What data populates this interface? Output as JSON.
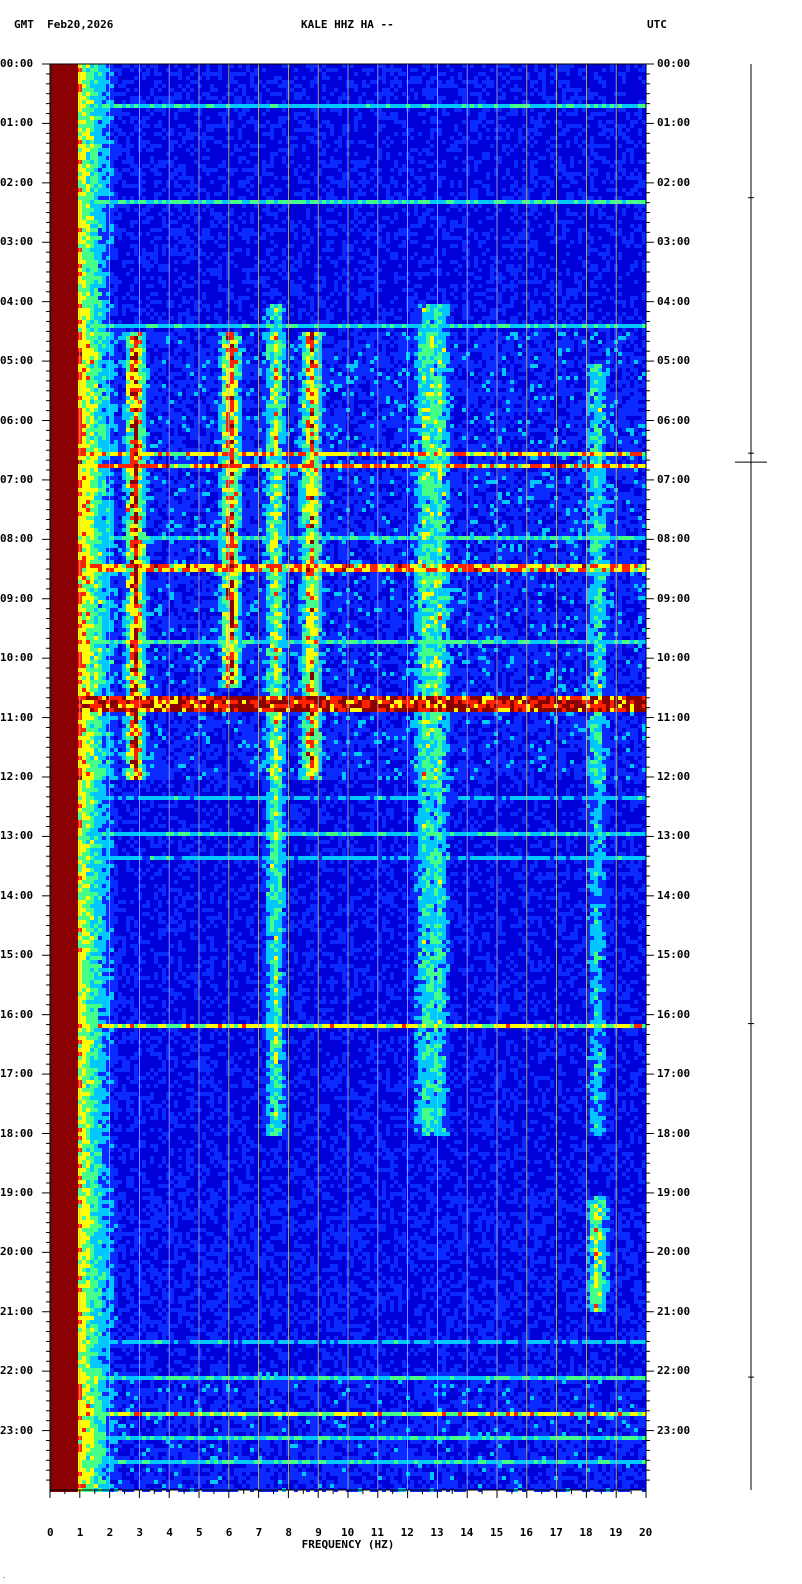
{
  "header": {
    "left": "GMT  Feb20,2026",
    "center": "KALE HHZ HA --",
    "right": "UTC"
  },
  "corner_mark": "·",
  "colors": {
    "background": "#0000d8",
    "low": "#0a2aff",
    "mid": "#00c8ff",
    "midhigh": "#44ff88",
    "high": "#ffff00",
    "peak": "#ff2200",
    "saturated": "#8b0000",
    "grid": "#bbbbbb"
  },
  "chart_data": {
    "type": "heatmap",
    "xlabel": "FREQUENCY (HZ)",
    "xlim": [
      0,
      20
    ],
    "ylim": [
      "00:00",
      "24:00"
    ],
    "x_ticks": [
      "0",
      "1",
      "2",
      "3",
      "4",
      "5",
      "6",
      "7",
      "8",
      "9",
      "10",
      "11",
      "12",
      "13",
      "14",
      "15",
      "16",
      "17",
      "18",
      "19",
      "20"
    ],
    "y_ticks": [
      "00:00",
      "01:00",
      "02:00",
      "03:00",
      "04:00",
      "05:00",
      "06:00",
      "07:00",
      "08:00",
      "09:00",
      "10:00",
      "11:00",
      "12:00",
      "13:00",
      "14:00",
      "15:00",
      "16:00",
      "17:00",
      "18:00",
      "19:00",
      "20:00",
      "21:00",
      "22:00",
      "23:00"
    ],
    "y_ticks_right": [
      "00:00",
      "01:00",
      "02:00",
      "03:00",
      "04:00",
      "05:00",
      "06:00",
      "07:00",
      "08:00",
      "09:00",
      "10:00",
      "11:00",
      "12:00",
      "13:00",
      "14:00",
      "15:00",
      "16:00",
      "17:00",
      "18:00",
      "19:00",
      "20:00",
      "21:00",
      "22:00",
      "23:00"
    ],
    "saturated_low_band_hz": [
      0,
      1
    ],
    "vertical_bands": [
      {
        "f": 2.8,
        "t0": 4.5,
        "t1": 12.0,
        "level": 0.7
      },
      {
        "f": 6.0,
        "t0": 4.5,
        "t1": 10.5,
        "level": 0.65
      },
      {
        "f": 8.7,
        "t0": 4.5,
        "t1": 12.0,
        "level": 0.6
      },
      {
        "f": 7.5,
        "t0": 4.0,
        "t1": 18.0,
        "level": 0.45
      },
      {
        "f": 12.5,
        "t0": 4.0,
        "t1": 18.0,
        "level": 0.35
      },
      {
        "f": 13.0,
        "t0": 4.0,
        "t1": 18.0,
        "level": 0.35
      },
      {
        "f": 18.3,
        "t0": 19.0,
        "t1": 21.0,
        "level": 0.5
      },
      {
        "f": 18.3,
        "t0": 5.0,
        "t1": 18.0,
        "level": 0.3
      }
    ],
    "horizontal_events": [
      {
        "t": 0.65,
        "level": 0.55
      },
      {
        "t": 2.3,
        "level": 0.6
      },
      {
        "t": 4.4,
        "level": 0.55
      },
      {
        "t": 6.55,
        "level": 0.8
      },
      {
        "t": 6.7,
        "level": 0.85
      },
      {
        "t": 7.95,
        "level": 0.6
      },
      {
        "t": 8.45,
        "level": 0.85
      },
      {
        "t": 9.7,
        "level": 0.6
      },
      {
        "t": 10.62,
        "level": 1.0
      },
      {
        "t": 10.7,
        "level": 1.0
      },
      {
        "t": 10.78,
        "level": 1.0
      },
      {
        "t": 10.86,
        "level": 1.0
      },
      {
        "t": 12.3,
        "level": 0.5
      },
      {
        "t": 12.95,
        "level": 0.55
      },
      {
        "t": 13.3,
        "level": 0.5
      },
      {
        "t": 16.15,
        "level": 0.75
      },
      {
        "t": 21.5,
        "level": 0.5
      },
      {
        "t": 22.1,
        "level": 0.6
      },
      {
        "t": 22.7,
        "level": 0.75
      },
      {
        "t": 23.1,
        "level": 0.6
      },
      {
        "t": 23.5,
        "level": 0.55
      }
    ],
    "activity_segments": [
      {
        "t0": 4.5,
        "t1": 12.0,
        "level": 0.35
      },
      {
        "t0": 19.0,
        "t1": 21.5,
        "level": 0.15
      },
      {
        "t0": 22.0,
        "t1": 24.0,
        "level": 0.3
      }
    ]
  },
  "helicorder": {
    "events_hours": [
      2.25,
      6.55,
      6.7,
      16.15,
      22.1
    ]
  }
}
